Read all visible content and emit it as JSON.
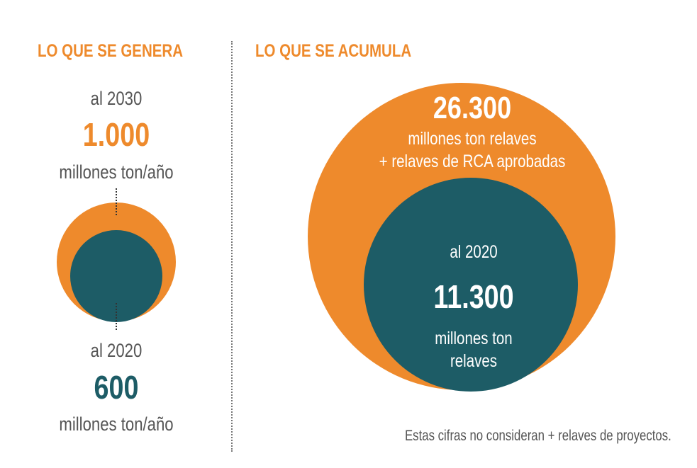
{
  "left": {
    "title": "LO QUE SE GENERA",
    "year_2030": "al 2030",
    "value_2030": "1.000",
    "unit_2030": "millones ton/año",
    "year_2020": "al 2020",
    "value_2020": "600",
    "unit_2020": "millones ton/año"
  },
  "right": {
    "title": "LO QUE SE ACUMULA",
    "outer_value": "26.300",
    "outer_line1": "millones ton relaves",
    "outer_line2": "+ relaves de RCA aprobadas",
    "inner_year": "al 2020",
    "inner_value": "11.300",
    "inner_line1": "millones ton",
    "inner_line2": "relaves"
  },
  "footnote": "Estas cifras no consideran + relaves de proyectos.",
  "colors": {
    "orange": "#ee8a2c",
    "teal": "#1d5c66",
    "gray_text": "#555555"
  }
}
